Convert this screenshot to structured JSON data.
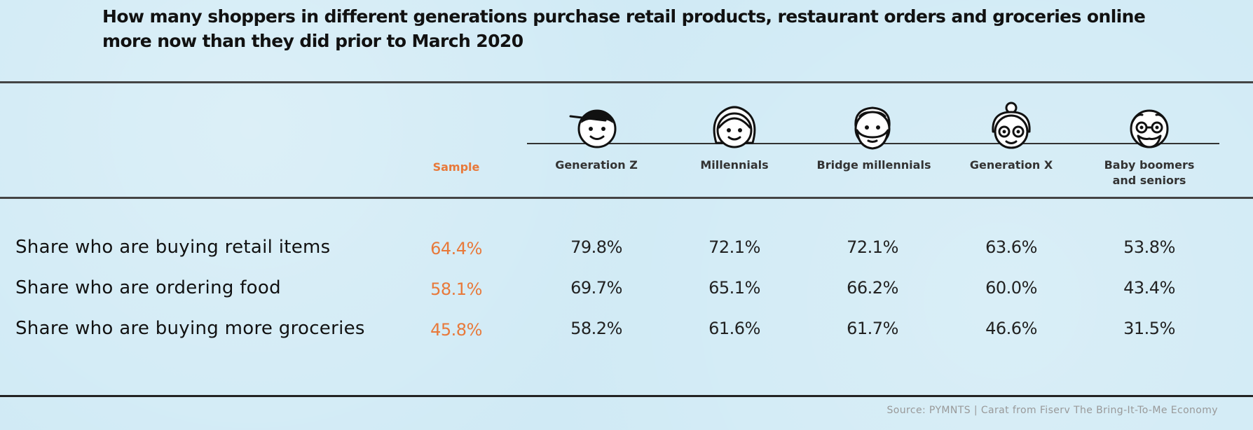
{
  "title": "How many shoppers in different generations purchase retail products, restaurant orders and groceries online more now than they did prior to March 2020",
  "source": "Source: PYMNTS | Carat from Fiserv The Bring-It-To-Me Economy",
  "colors": {
    "sample": "#e8793a",
    "text": "#111111",
    "background": "#d0eaf5"
  },
  "chart_data": {
    "type": "table",
    "title": "How many shoppers in different generations purchase retail products, restaurant orders and groceries online more now than they did prior to March 2020",
    "columns": [
      "Sample",
      "Generation Z",
      "Millennials",
      "Bridge millennials",
      "Generation X",
      "Baby boomers and seniors"
    ],
    "column_icons": [
      "",
      "gen-z-face-icon",
      "millennial-face-icon",
      "bridge-millennial-face-icon",
      "gen-x-face-icon",
      "boomer-face-icon"
    ],
    "rows": [
      {
        "label": "Share who are buying retail items",
        "values": [
          "64.4%",
          "79.8%",
          "72.1%",
          "72.1%",
          "63.6%",
          "53.8%"
        ]
      },
      {
        "label": "Share who are ordering food",
        "values": [
          "58.1%",
          "69.7%",
          "65.1%",
          "66.2%",
          "60.0%",
          "43.4%"
        ]
      },
      {
        "label": "Share who are buying more groceries",
        "values": [
          "45.8%",
          "58.2%",
          "61.6%",
          "61.7%",
          "46.6%",
          "31.5%"
        ]
      }
    ]
  }
}
